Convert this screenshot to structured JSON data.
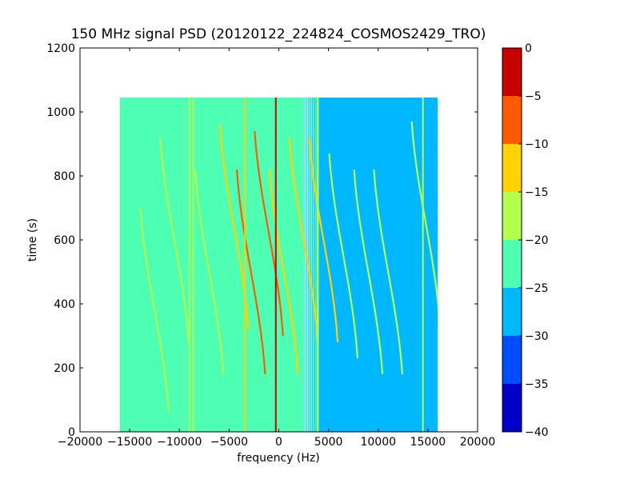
{
  "chart_data": {
    "type": "heatmap",
    "title": "150 MHz signal PSD (20120122_224824_COSMOS2429_TRO)",
    "xlabel": "frequency (Hz)",
    "ylabel": "time (s)",
    "xlim": [
      -20000,
      20000
    ],
    "ylim": [
      0,
      1200
    ],
    "xticks": [
      -20000,
      -15000,
      -10000,
      -5000,
      0,
      5000,
      10000,
      15000,
      20000
    ],
    "xtick_labels": [
      "−20000",
      "−15000",
      "−10000",
      "−5000",
      "0",
      "5000",
      "10000",
      "15000",
      "20000"
    ],
    "yticks": [
      0,
      200,
      400,
      600,
      800,
      1000,
      1200
    ],
    "ytick_labels": [
      "0",
      "200",
      "400",
      "600",
      "800",
      "1000",
      "1200"
    ],
    "data_extent": {
      "x": [
        -16000,
        16000
      ],
      "y": [
        0,
        1045
      ]
    },
    "background_levels": [
      {
        "x_range": [
          -16000,
          2500
        ],
        "level": -22.5
      },
      {
        "x_range": [
          4000,
          16000
        ],
        "level": -27.5
      }
    ],
    "vertical_lines": [
      {
        "x": -9000,
        "level": -17
      },
      {
        "x": -8600,
        "level": -17
      },
      {
        "x": -3400,
        "level": -12
      },
      {
        "x": -300,
        "level": -5
      },
      {
        "x": 3900,
        "level": -17
      },
      {
        "x": 14500,
        "level": -17
      }
    ],
    "doppler_tracks": [
      {
        "x_center": -12500,
        "y_center": 380,
        "level": -17
      },
      {
        "x_center": -10500,
        "y_center": 600,
        "level": -17
      },
      {
        "x_center": -7000,
        "y_center": 500,
        "level": -17
      },
      {
        "x_center": -4500,
        "y_center": 640,
        "level": -12
      },
      {
        "x_center": -2800,
        "y_center": 500,
        "level": -7
      },
      {
        "x_center": -1000,
        "y_center": 620,
        "level": -7
      },
      {
        "x_center": 500,
        "y_center": 500,
        "level": -12
      },
      {
        "x_center": 2500,
        "y_center": 600,
        "level": -12
      },
      {
        "x_center": 4500,
        "y_center": 600,
        "level": -12
      },
      {
        "x_center": 6500,
        "y_center": 550,
        "level": -17
      },
      {
        "x_center": 9000,
        "y_center": 500,
        "level": -17
      },
      {
        "x_center": 11000,
        "y_center": 500,
        "level": -17
      },
      {
        "x_center": 14800,
        "y_center": 650,
        "level": -17
      }
    ],
    "colorbar": {
      "levels": [
        -40,
        -35,
        -30,
        -25,
        -20,
        -15,
        -10,
        -5,
        0
      ],
      "tick_labels": [
        "−40",
        "−35",
        "−30",
        "−25",
        "−20",
        "−15",
        "−10",
        "−5",
        "0"
      ],
      "colors": [
        "#0000c8",
        "#004cff",
        "#00b8ff",
        "#4dffb2",
        "#b3ff4d",
        "#ffd200",
        "#ff5a00",
        "#c80000"
      ]
    }
  }
}
